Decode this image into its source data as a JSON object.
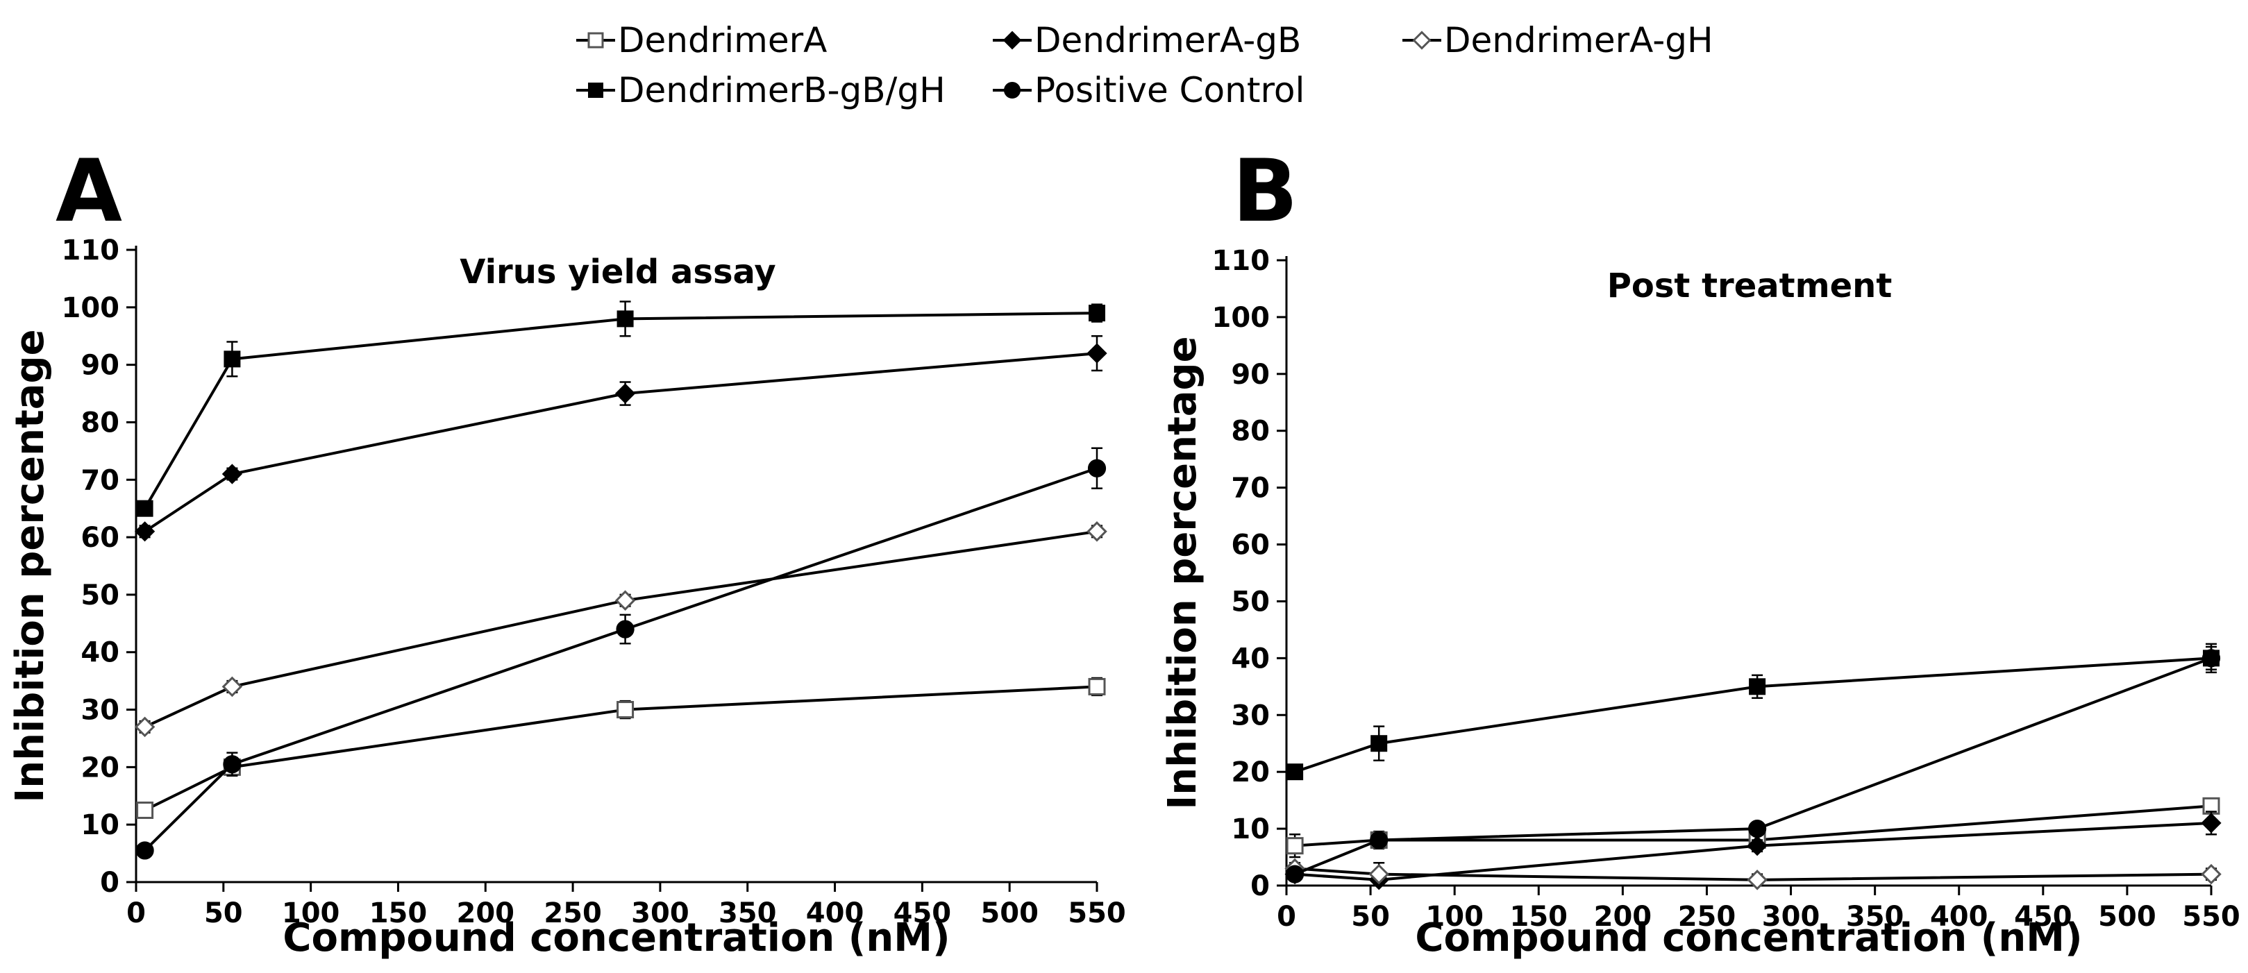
{
  "legend": {
    "entries": [
      {
        "key": "A",
        "label": "DendrimerA",
        "marker": "open-square"
      },
      {
        "key": "AgB",
        "label": "DendrimerA-gB",
        "marker": "filled-diamond"
      },
      {
        "key": "AgH",
        "label": "DendrimerA-gH",
        "marker": "open-diamond"
      },
      {
        "key": "BgBgH",
        "label": "DendrimerB-gB/gH",
        "marker": "filled-square"
      },
      {
        "key": "PC",
        "label": "Positive Control",
        "marker": "filled-circle"
      }
    ]
  },
  "colors": {
    "line": "#000000",
    "open_marker_stroke": "#555555",
    "open_marker_fill": "#ffffff",
    "background": "#ffffff"
  },
  "chart_data": [
    {
      "type": "line",
      "panel_label": "A",
      "title": "Virus yield assay",
      "xlabel": "Compound concentration (nM)",
      "ylabel": "Inhibition percentage",
      "xlim": [
        0,
        550
      ],
      "ylim": [
        0,
        110
      ],
      "xticks": [
        0,
        50,
        100,
        150,
        200,
        250,
        300,
        350,
        400,
        450,
        500,
        550
      ],
      "yticks": [
        0,
        10,
        20,
        30,
        40,
        50,
        60,
        70,
        80,
        90,
        100,
        110
      ],
      "x": [
        5,
        55,
        280,
        550
      ],
      "series": [
        {
          "key": "A",
          "name": "DendrimerA",
          "values": [
            12.5,
            20,
            30,
            34
          ],
          "errors": [
            1,
            1,
            1.5,
            1.5
          ]
        },
        {
          "key": "AgB",
          "name": "DendrimerA-gB",
          "values": [
            61,
            71,
            85,
            92
          ],
          "errors": [
            1,
            1,
            2,
            3
          ]
        },
        {
          "key": "AgH",
          "name": "DendrimerA-gH",
          "values": [
            27,
            34,
            49,
            61
          ],
          "errors": [
            1,
            1,
            1,
            1
          ]
        },
        {
          "key": "BgBgH",
          "name": "DendrimerB-gB/gH",
          "values": [
            65,
            91,
            98,
            99
          ],
          "errors": [
            1,
            3,
            3,
            1.5
          ]
        },
        {
          "key": "PC",
          "name": "Positive Control",
          "values": [
            5.5,
            20.5,
            44,
            72
          ],
          "errors": [
            1,
            2,
            2.5,
            3.5
          ]
        }
      ]
    },
    {
      "type": "line",
      "panel_label": "B",
      "title": "Post treatment",
      "xlabel": "Compound concentration (nM)",
      "ylabel": "Inhibition percentage",
      "xlim": [
        0,
        550
      ],
      "ylim": [
        0,
        110
      ],
      "xticks": [
        0,
        50,
        100,
        150,
        200,
        250,
        300,
        350,
        400,
        450,
        500,
        550
      ],
      "yticks": [
        0,
        10,
        20,
        30,
        40,
        50,
        60,
        70,
        80,
        90,
        100,
        110
      ],
      "x": [
        5,
        55,
        280,
        550
      ],
      "series": [
        {
          "key": "A",
          "name": "DendrimerA",
          "values": [
            7,
            8,
            8,
            14
          ],
          "errors": [
            2,
            1.5,
            1,
            1
          ]
        },
        {
          "key": "AgB",
          "name": "DendrimerA-gB",
          "values": [
            2,
            1,
            7,
            11
          ],
          "errors": [
            1,
            1,
            1,
            2
          ]
        },
        {
          "key": "AgH",
          "name": "DendrimerA-gH",
          "values": [
            3,
            2,
            1,
            2
          ],
          "errors": [
            1,
            2,
            1,
            1
          ]
        },
        {
          "key": "BgBgH",
          "name": "DendrimerB-gB/gH",
          "values": [
            20,
            25,
            35,
            40
          ],
          "errors": [
            1,
            3,
            2,
            2.5
          ]
        },
        {
          "key": "PC",
          "name": "Positive Control",
          "values": [
            2,
            8,
            10,
            40
          ],
          "errors": [
            1,
            1,
            1,
            2
          ]
        }
      ]
    }
  ]
}
